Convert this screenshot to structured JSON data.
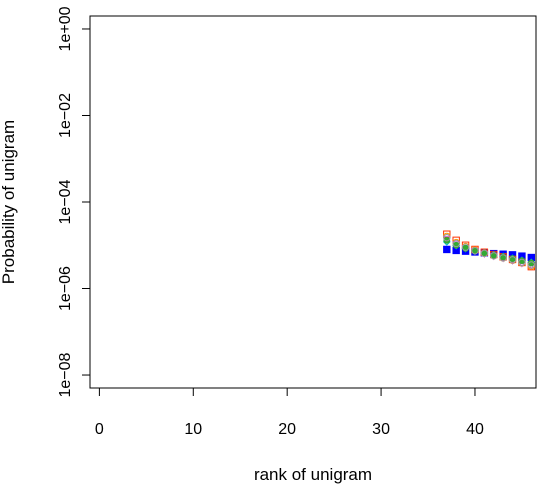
{
  "chart_data": {
    "type": "scatter",
    "title": "",
    "xlabel": "rank of unigram",
    "ylabel": "Probability of unigram",
    "x_scale": "linear",
    "y_scale": "log",
    "xlim": [
      -1,
      46.5
    ],
    "ylim_log10": [
      -8.3,
      0.3
    ],
    "x_ticks": [
      0,
      10,
      20,
      30,
      40
    ],
    "x_tick_labels": [
      "0",
      "10",
      "20",
      "30",
      "40"
    ],
    "y_ticks_log10": [
      0,
      -2,
      -4,
      -6,
      -8
    ],
    "y_tick_labels": [
      "1e+00",
      "1e−02",
      "1e−04",
      "1e−06",
      "1e−08"
    ],
    "grid": false,
    "legend": "none",
    "series": [
      {
        "color": "#0000ff",
        "marker": "filled-square",
        "x": [
          37,
          38,
          39,
          40,
          41,
          42,
          43,
          44,
          45,
          46
        ],
        "y": [
          8e-06,
          7.6e-06,
          7.3e-06,
          7e-06,
          6.7e-06,
          6.4e-06,
          6.2e-06,
          6e-06,
          5.6e-06,
          5.2e-06
        ]
      },
      {
        "color": "#ff3300",
        "marker": "open-square",
        "x": [
          37,
          38,
          39,
          40,
          41,
          42,
          43,
          44,
          45,
          46
        ],
        "y": [
          1.8e-05,
          1.3e-05,
          1e-05,
          8e-06,
          6.9e-06,
          6.1e-06,
          5.4e-06,
          4.7e-06,
          4e-06,
          3.2e-06
        ]
      },
      {
        "color": "#ff9900",
        "marker": "open-circle",
        "x": [
          37,
          38,
          39,
          40,
          41,
          42,
          43,
          44,
          45,
          46
        ],
        "y": [
          1.6e-05,
          1.15e-05,
          9.3e-06,
          7.7e-06,
          6.6e-06,
          5.8e-06,
          5.1e-06,
          4.5e-06,
          3.9e-06,
          3.3e-06
        ]
      },
      {
        "color": "#cc66cc",
        "marker": "open-triangle-down",
        "x": [
          37,
          38,
          39,
          40,
          41,
          42,
          43,
          44,
          45,
          46
        ],
        "y": [
          1.4e-05,
          1.05e-05,
          8.6e-06,
          7.3e-06,
          6.3e-06,
          5.6e-06,
          5e-06,
          4.4e-06,
          3.8e-06,
          3.4e-06
        ]
      },
      {
        "color": "#00bbcc",
        "marker": "open-diamond",
        "x": [
          37,
          38,
          39,
          40,
          41,
          42,
          43,
          44,
          45,
          46
        ],
        "y": [
          1.2e-05,
          9.8e-06,
          8.4e-06,
          7.4e-06,
          6.6e-06,
          6e-06,
          5.5e-06,
          5e-06,
          4.5e-06,
          4e-06
        ]
      },
      {
        "color": "#33aa33",
        "marker": "filled-circle",
        "x": [
          37,
          38,
          39,
          40,
          41,
          42,
          43,
          44,
          45,
          46
        ],
        "y": [
          1.3e-05,
          1e-05,
          8.5e-06,
          7.3e-06,
          6.5e-06,
          5.9e-06,
          5.4e-06,
          4.9e-06,
          4.4e-06,
          3.9e-06
        ]
      },
      {
        "color": "#999999",
        "marker": "open-circle",
        "x": [
          37,
          38,
          39,
          40,
          41,
          42,
          43,
          44,
          45,
          46
        ],
        "y": [
          1.5e-05,
          1.1e-05,
          9e-06,
          7.5e-06,
          6.5e-06,
          5.7e-06,
          5.1e-06,
          4.6e-06,
          4e-06,
          3.5e-06
        ]
      }
    ]
  }
}
